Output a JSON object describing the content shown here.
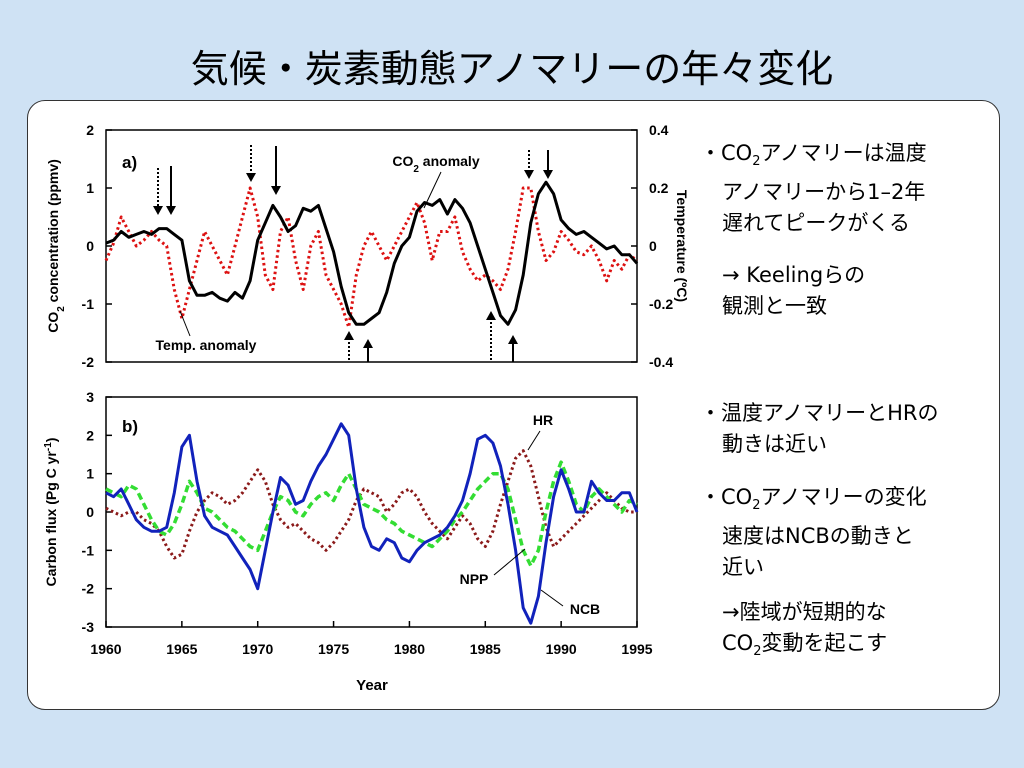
{
  "slide": {
    "title": "気候・炭素動態アノマリーの年々変化"
  },
  "chart_data": [
    {
      "panel_label": "a)",
      "type": "line",
      "xlim": [
        1960,
        1995
      ],
      "ylabel_left": "CO2 concentration (ppmv)",
      "ylim_left": [
        -2,
        2
      ],
      "yticks_left": [
        "2",
        "1",
        "0",
        "-1",
        "-2"
      ],
      "ylabel_right": "Temperature (ºC)",
      "ylim_right": [
        -0.4,
        0.4
      ],
      "yticks_right": [
        "0.4",
        "0.2",
        "0",
        "-0.2",
        "-0.4"
      ],
      "series": [
        {
          "name": "CO2 anomaly",
          "axis": "left",
          "color": "#000000",
          "style": "solid",
          "x": [
            1960,
            1960.5,
            1961,
            1961.5,
            1962,
            1962.5,
            1963,
            1963.5,
            1964,
            1964.5,
            1965,
            1965.5,
            1966,
            1966.5,
            1967,
            1967.5,
            1968,
            1968.5,
            1969,
            1969.5,
            1970,
            1970.5,
            1971,
            1971.5,
            1972,
            1972.5,
            1973,
            1973.5,
            1974,
            1974.5,
            1975,
            1975.5,
            1976,
            1976.5,
            1977,
            1977.5,
            1978,
            1978.5,
            1979,
            1979.5,
            1980,
            1980.5,
            1981,
            1981.5,
            1982,
            1982.5,
            1983,
            1983.5,
            1984,
            1984.5,
            1985,
            1985.5,
            1986,
            1986.5,
            1987,
            1987.5,
            1988,
            1988.5,
            1989,
            1989.5,
            1990,
            1990.5,
            1991,
            1991.5,
            1992,
            1992.5,
            1993,
            1993.5,
            1994,
            1994.5,
            1995
          ],
          "y": [
            0.05,
            0.1,
            0.25,
            0.15,
            0.2,
            0.25,
            0.2,
            0.3,
            0.3,
            0.2,
            0.1,
            -0.6,
            -0.85,
            -0.85,
            -0.8,
            -0.9,
            -0.95,
            -0.8,
            -0.9,
            -0.6,
            0.1,
            0.4,
            0.7,
            0.5,
            0.25,
            0.35,
            0.65,
            0.6,
            0.7,
            0.3,
            -0.1,
            -0.7,
            -1.15,
            -1.35,
            -1.35,
            -1.25,
            -1.15,
            -0.8,
            -0.3,
            0.0,
            0.15,
            0.6,
            0.75,
            0.7,
            0.8,
            0.55,
            0.8,
            0.65,
            0.4,
            0.0,
            -0.4,
            -0.8,
            -1.2,
            -1.35,
            -1.1,
            -0.5,
            0.4,
            0.9,
            1.1,
            0.9,
            0.45,
            0.3,
            0.2,
            0.25,
            0.15,
            0.05,
            -0.05,
            0.0,
            -0.15,
            -0.15,
            -0.3
          ]
        },
        {
          "name": "Temp. anomaly",
          "axis": "right",
          "color": "#dd1111",
          "style": "dotted",
          "x": [
            1960,
            1960.5,
            1961,
            1961.5,
            1962,
            1962.5,
            1963,
            1963.5,
            1964,
            1964.5,
            1965,
            1965.5,
            1966,
            1966.5,
            1967,
            1967.5,
            1968,
            1968.5,
            1969,
            1969.5,
            1970,
            1970.5,
            1971,
            1971.5,
            1972,
            1972.5,
            1973,
            1973.5,
            1974,
            1974.5,
            1975,
            1975.5,
            1976,
            1976.5,
            1977,
            1977.5,
            1978,
            1978.5,
            1979,
            1979.5,
            1980,
            1980.5,
            1981,
            1981.5,
            1982,
            1982.5,
            1983,
            1983.5,
            1984,
            1984.5,
            1985,
            1985.5,
            1986,
            1986.5,
            1987,
            1987.5,
            1988,
            1988.5,
            1989,
            1989.5,
            1990,
            1990.5,
            1991,
            1991.5,
            1992,
            1992.5,
            1993,
            1993.5,
            1994,
            1994.5,
            1995
          ],
          "y": [
            -0.05,
            0.01,
            0.1,
            0.05,
            0.0,
            0.02,
            0.05,
            0.02,
            0.0,
            -0.15,
            -0.25,
            -0.15,
            -0.05,
            0.05,
            0.0,
            -0.05,
            -0.1,
            0.0,
            0.1,
            0.2,
            0.1,
            -0.1,
            -0.15,
            0.05,
            0.1,
            -0.05,
            -0.15,
            0.0,
            0.05,
            -0.1,
            -0.15,
            -0.2,
            -0.28,
            -0.1,
            0.0,
            0.05,
            0.0,
            -0.05,
            0.0,
            0.05,
            0.1,
            0.15,
            0.08,
            -0.05,
            0.05,
            0.05,
            0.1,
            -0.02,
            -0.08,
            -0.12,
            -0.1,
            -0.12,
            -0.15,
            -0.08,
            0.05,
            0.2,
            0.2,
            0.05,
            -0.05,
            -0.02,
            0.05,
            0.02,
            -0.02,
            -0.03,
            0.0,
            -0.05,
            -0.12,
            -0.05,
            -0.08,
            -0.03,
            -0.05
          ]
        }
      ],
      "annotations": [
        "CO2 anomaly",
        "Temp. anomaly"
      ]
    },
    {
      "panel_label": "b)",
      "type": "line",
      "xlim": [
        1960,
        1995
      ],
      "ylabel": "Carbon flux (Pg C yr-1)",
      "ylim": [
        -3,
        3
      ],
      "yticks": [
        "3",
        "2",
        "1",
        "0",
        "-1",
        "-2",
        "-3"
      ],
      "xlabel": "Year",
      "xticks": [
        "1960",
        "1965",
        "1970",
        "1975",
        "1980",
        "1985",
        "1990",
        "1995"
      ],
      "series": [
        {
          "name": "HR",
          "color": "#8b1a1a",
          "style": "dotted",
          "x": [
            1960,
            1960.5,
            1961,
            1961.5,
            1962,
            1962.5,
            1963,
            1963.5,
            1964,
            1964.5,
            1965,
            1965.5,
            1966,
            1966.5,
            1967,
            1967.5,
            1968,
            1968.5,
            1969,
            1969.5,
            1970,
            1970.5,
            1971,
            1971.5,
            1972,
            1972.5,
            1973,
            1973.5,
            1974,
            1974.5,
            1975,
            1975.5,
            1976,
            1976.5,
            1977,
            1977.5,
            1978,
            1978.5,
            1979,
            1979.5,
            1980,
            1980.5,
            1981,
            1981.5,
            1982,
            1982.5,
            1983,
            1983.5,
            1984,
            1984.5,
            1985,
            1985.5,
            1986,
            1986.5,
            1987,
            1987.5,
            1988,
            1988.5,
            1989,
            1989.5,
            1990,
            1990.5,
            1991,
            1991.5,
            1992,
            1992.5,
            1993,
            1993.5,
            1994,
            1994.5,
            1995
          ],
          "y": [
            0.1,
            0.0,
            -0.1,
            0.0,
            0.0,
            -0.2,
            -0.3,
            -0.5,
            -0.9,
            -1.2,
            -1.1,
            -0.5,
            0.0,
            0.3,
            0.5,
            0.4,
            0.2,
            0.3,
            0.5,
            0.8,
            1.1,
            0.8,
            0.2,
            -0.2,
            -0.4,
            -0.3,
            -0.5,
            -0.7,
            -0.8,
            -1.0,
            -0.8,
            -0.5,
            -0.2,
            0.3,
            0.6,
            0.5,
            0.4,
            0.0,
            0.2,
            0.5,
            0.6,
            0.4,
            0.0,
            -0.3,
            -0.5,
            -0.7,
            -0.4,
            -0.1,
            -0.3,
            -0.7,
            -0.9,
            -0.5,
            0.2,
            0.8,
            1.4,
            1.6,
            1.2,
            0.4,
            -0.4,
            -0.9,
            -0.7,
            -0.5,
            -0.3,
            -0.1,
            0.1,
            0.3,
            0.5,
            0.3,
            0.1,
            0.0,
            0.0
          ]
        },
        {
          "name": "NPP",
          "color": "#33dd33",
          "style": "dashed",
          "x": [
            1960,
            1960.5,
            1961,
            1961.5,
            1962,
            1962.5,
            1963,
            1963.5,
            1964,
            1964.5,
            1965,
            1965.5,
            1966,
            1966.5,
            1967,
            1967.5,
            1968,
            1968.5,
            1969,
            1969.5,
            1970,
            1970.5,
            1971,
            1971.5,
            1972,
            1972.5,
            1973,
            1973.5,
            1974,
            1974.5,
            1975,
            1975.5,
            1976,
            1976.5,
            1977,
            1977.5,
            1978,
            1978.5,
            1979,
            1979.5,
            1980,
            1980.5,
            1981,
            1981.5,
            1982,
            1982.5,
            1983,
            1983.5,
            1984,
            1984.5,
            1985,
            1985.5,
            1986,
            1986.5,
            1987,
            1987.5,
            1988,
            1988.5,
            1989,
            1989.5,
            1990,
            1990.5,
            1991,
            1991.5,
            1992,
            1992.5,
            1993,
            1993.5,
            1994,
            1994.5,
            1995
          ],
          "y": [
            0.6,
            0.5,
            0.4,
            0.7,
            0.6,
            0.2,
            -0.2,
            -0.5,
            -0.6,
            -0.3,
            0.2,
            0.8,
            0.5,
            0.1,
            0.0,
            -0.2,
            -0.4,
            -0.5,
            -0.7,
            -0.9,
            -1.0,
            -0.5,
            0.0,
            0.4,
            0.3,
            0.0,
            -0.1,
            0.2,
            0.4,
            0.5,
            0.3,
            0.7,
            1.0,
            0.6,
            0.2,
            0.1,
            0.0,
            -0.2,
            -0.3,
            -0.5,
            -0.6,
            -0.7,
            -0.8,
            -0.9,
            -0.7,
            -0.5,
            -0.2,
            0.0,
            0.3,
            0.6,
            0.8,
            1.0,
            1.0,
            0.6,
            -0.2,
            -1.0,
            -1.4,
            -1.0,
            0.0,
            0.8,
            1.3,
            0.8,
            0.2,
            0.0,
            0.4,
            0.6,
            0.4,
            0.2,
            0.0,
            0.3,
            0.2
          ]
        },
        {
          "name": "NCB",
          "color": "#1122bb",
          "style": "solid",
          "x": [
            1960,
            1960.5,
            1961,
            1961.5,
            1962,
            1962.5,
            1963,
            1963.5,
            1964,
            1964.5,
            1965,
            1965.5,
            1966,
            1966.5,
            1967,
            1967.5,
            1968,
            1968.5,
            1969,
            1969.5,
            1970,
            1970.5,
            1971,
            1971.5,
            1972,
            1972.5,
            1973,
            1973.5,
            1974,
            1974.5,
            1975,
            1975.5,
            1976,
            1976.5,
            1977,
            1977.5,
            1978,
            1978.5,
            1979,
            1979.5,
            1980,
            1980.5,
            1981,
            1981.5,
            1982,
            1982.5,
            1983,
            1983.5,
            1984,
            1984.5,
            1985,
            1985.5,
            1986,
            1986.5,
            1987,
            1987.5,
            1988,
            1988.5,
            1989,
            1989.5,
            1990,
            1990.5,
            1991,
            1991.5,
            1992,
            1992.5,
            1993,
            1993.5,
            1994,
            1994.5,
            1995
          ],
          "y": [
            0.5,
            0.4,
            0.6,
            0.2,
            -0.2,
            -0.4,
            -0.5,
            -0.5,
            -0.4,
            0.5,
            1.7,
            2.0,
            0.8,
            -0.1,
            -0.4,
            -0.5,
            -0.6,
            -0.9,
            -1.2,
            -1.5,
            -2.0,
            -1.0,
            0.0,
            0.9,
            0.7,
            0.2,
            0.3,
            0.8,
            1.2,
            1.5,
            1.9,
            2.3,
            2.0,
            0.6,
            -0.4,
            -0.9,
            -1.0,
            -0.7,
            -0.8,
            -1.2,
            -1.3,
            -1.0,
            -0.8,
            -0.7,
            -0.6,
            -0.4,
            -0.1,
            0.3,
            1.0,
            1.9,
            2.0,
            1.8,
            1.2,
            0.2,
            -1.0,
            -2.5,
            -2.9,
            -2.2,
            -0.8,
            0.4,
            1.1,
            0.6,
            0.0,
            0.0,
            0.8,
            0.5,
            0.3,
            0.3,
            0.5,
            0.5,
            0.0
          ]
        }
      ],
      "annotations": [
        "HR",
        "NPP",
        "NCB"
      ]
    }
  ],
  "notes": {
    "block1": [
      "・CO2アノマリーは温度",
      "アノマリーから1–2年",
      "遅れてピークがくる"
    ],
    "block2": [
      "→ Keelingらの",
      "観測と一致"
    ],
    "block3": [
      "・温度アノマリーとHRの",
      "動きは近い"
    ],
    "block4": [
      "・CO2アノマリーの変化",
      "速度はNCBの動きと",
      "近い"
    ],
    "block5": [
      "→陸域が短期的な",
      "CO2変動を起こす"
    ]
  }
}
